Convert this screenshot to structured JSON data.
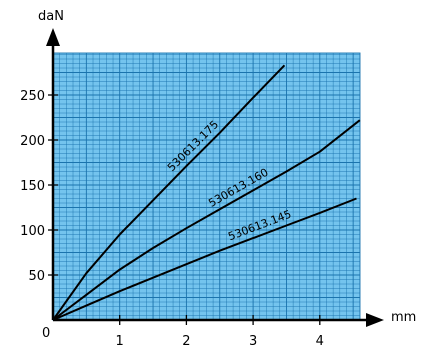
{
  "chart_data": {
    "type": "line",
    "xlabel": "mm",
    "ylabel": "daN",
    "origin_label": "0",
    "xlim": [
      0,
      4.6
    ],
    "ylim": [
      0,
      280
    ],
    "x_ticks": [
      1,
      2,
      3,
      4
    ],
    "y_ticks": [
      50,
      100,
      150,
      200,
      250
    ],
    "grid": true,
    "grid_minor_x_step": 0.1,
    "grid_minor_y_step": 5,
    "colors": {
      "grid_fill": "#74c4ee",
      "grid_line": "#1a73ad",
      "curve": "#000000",
      "axis": "#000000"
    },
    "series": [
      {
        "name": "530613.175",
        "x": [
          0,
          0.5,
          1,
          1.5,
          2,
          2.5,
          3,
          3.47
        ],
        "y": [
          0,
          52,
          95,
          133,
          171,
          208,
          247,
          283
        ]
      },
      {
        "name": "530613.160",
        "x": [
          0,
          0.5,
          1,
          1.5,
          2,
          2.5,
          3,
          3.5,
          4,
          4.6
        ],
        "y": [
          0,
          28,
          56,
          80,
          102,
          123,
          144,
          165,
          187,
          222
        ]
      },
      {
        "name": "530613.145",
        "x": [
          0,
          0.5,
          1,
          1.5,
          2,
          2.5,
          3,
          3.5,
          4,
          4.55
        ],
        "y": [
          0,
          16,
          32,
          47,
          62,
          77,
          91,
          105,
          119,
          135
        ]
      }
    ]
  }
}
